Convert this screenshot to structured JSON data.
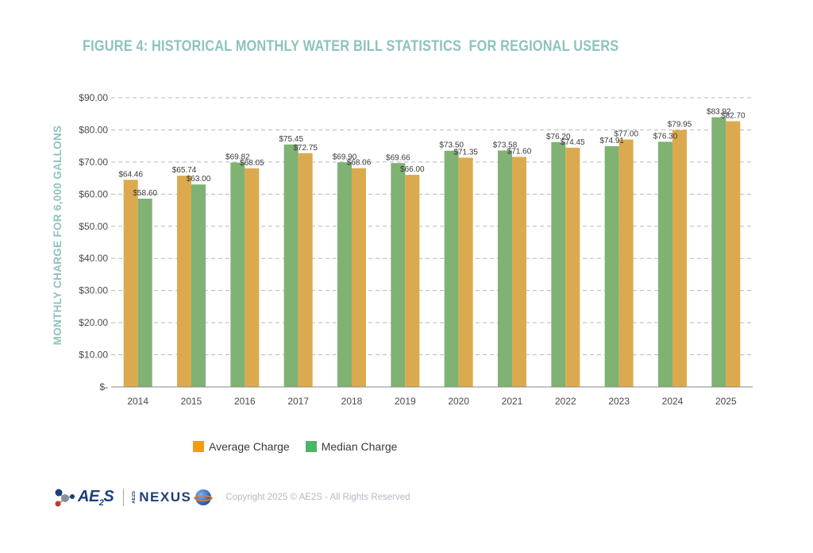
{
  "chart_data": {
    "type": "bar",
    "title": "FIGURE 4: HISTORICAL MONTHLY WATER BILL STATISTICS  FOR REGIONAL USERS",
    "ylabel": "MONTHLY CHARGE FOR 6,000 GALLONS",
    "xlabel": "",
    "ylim": [
      0,
      90
    ],
    "ytick_values": [
      0,
      10,
      20,
      30,
      40,
      50,
      60,
      70,
      80,
      90
    ],
    "ytick_labels": [
      "$-",
      "$10.00",
      "$20.00",
      "$30.00",
      "$40.00",
      "$50.00",
      "$60.00",
      "$70.00",
      "$80.00",
      "$90.00"
    ],
    "grid": "horizontal-dashed",
    "legend_position": "bottom-left",
    "categories": [
      "2014",
      "2015",
      "2016",
      "2017",
      "2018",
      "2019",
      "2020",
      "2021",
      "2022",
      "2023",
      "2024",
      "2025"
    ],
    "bar_order": [
      [
        "average",
        "median"
      ],
      [
        "average",
        "median"
      ],
      [
        "median",
        "average"
      ],
      [
        "median",
        "average"
      ],
      [
        "median",
        "average"
      ],
      [
        "median",
        "average"
      ],
      [
        "median",
        "average"
      ],
      [
        "median",
        "average"
      ],
      [
        "median",
        "average"
      ],
      [
        "median",
        "average"
      ],
      [
        "median",
        "average"
      ],
      [
        "median",
        "average"
      ]
    ],
    "series": [
      {
        "key": "average",
        "name": "Average Charge",
        "bar_color": "#dcaa4e",
        "legend_color": "#f39c12",
        "values": [
          64.46,
          65.74,
          68.05,
          72.75,
          68.06,
          66.0,
          71.35,
          71.6,
          74.45,
          77.0,
          79.95,
          82.7
        ],
        "labels": [
          "$64.46",
          "$65.74",
          "$68.05",
          "$72.75",
          "$68.06",
          "$66.00",
          "$71.35",
          "$71.60",
          "$74.45",
          "$77.00",
          "$79.95",
          "$82.70"
        ]
      },
      {
        "key": "median",
        "name": "Median Charge",
        "bar_color": "#7fb273",
        "legend_color": "#4cb565",
        "values": [
          58.6,
          63.0,
          69.82,
          75.45,
          69.9,
          69.66,
          73.5,
          73.58,
          76.2,
          74.91,
          76.3,
          83.92
        ],
        "labels": [
          "$58.60",
          "$63.00",
          "$69.82",
          "$75.45",
          "$69.90",
          "$69.66",
          "$73.50",
          "$73.58",
          "$76.20",
          "$74.91",
          "$76.30",
          "$83.92"
        ]
      }
    ]
  },
  "footer": {
    "logo_text": "AE",
    "logo_sub": "2",
    "logo_s": "S",
    "nexus_prefix": "AE2S",
    "nexus_text": "NEXUS",
    "copyright": "Copyright 2025 © AE2S - All Rights Reserved"
  },
  "icons": {
    "ae2s_logo": "molecule-icon",
    "nexus_logo": "globe-icon"
  }
}
